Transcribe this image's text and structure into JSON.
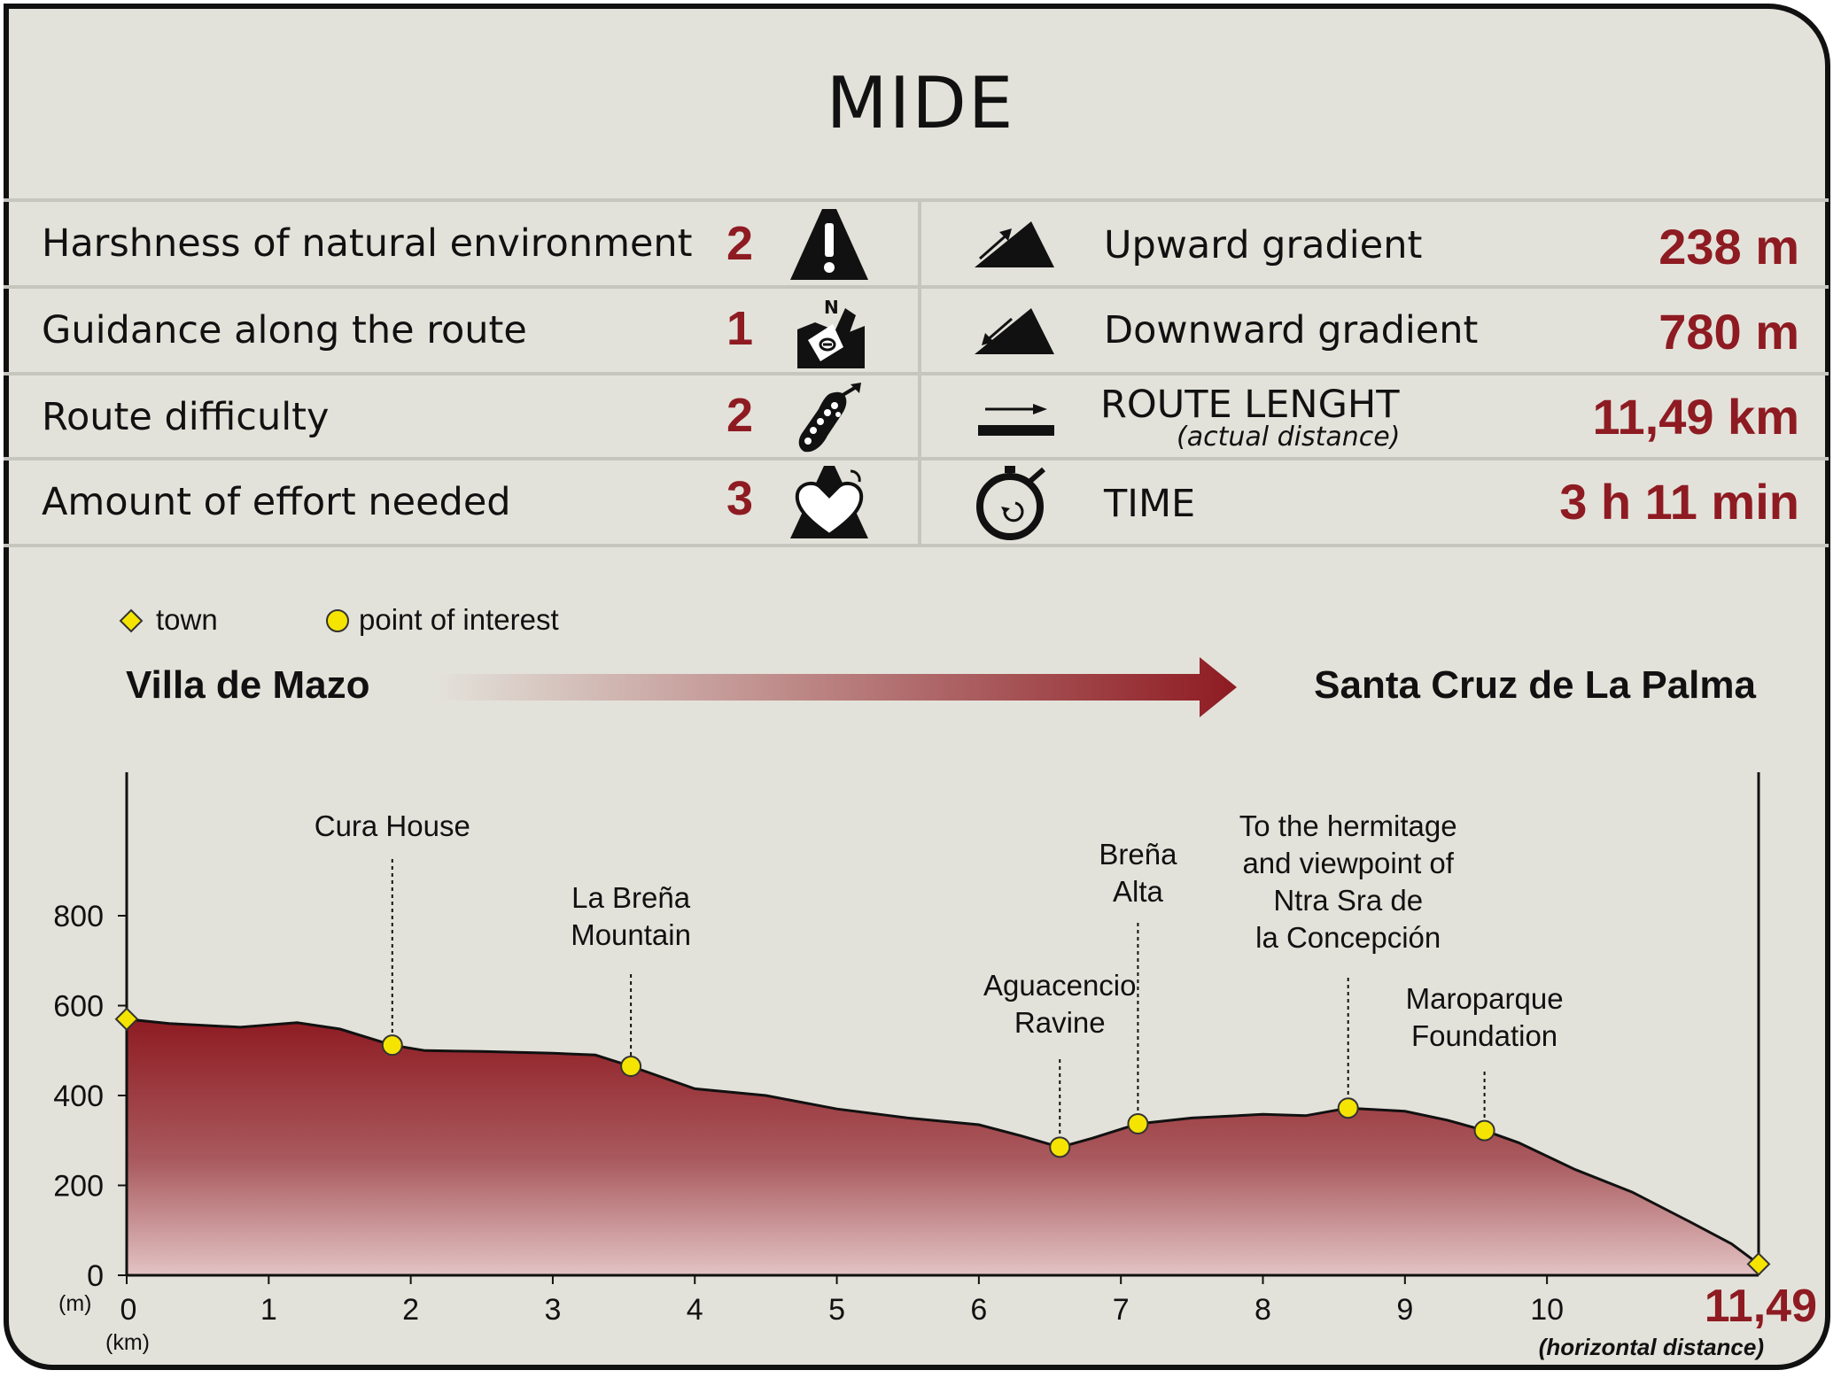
{
  "title": "MIDE",
  "mide_rows": [
    {
      "label": "Harshness of natural environment",
      "score": "2",
      "icon": "warning-mountain-icon"
    },
    {
      "label": "Guidance along the route",
      "score": "1",
      "icon": "map-compass-icon"
    },
    {
      "label": "Route difficulty",
      "score": "2",
      "icon": "boot-print-icon"
    },
    {
      "label": "Amount of effort needed",
      "score": "3",
      "icon": "heart-mountain-icon"
    }
  ],
  "route_stats": [
    {
      "label": "Upward gradient",
      "value": "238 m",
      "icon": "ascent-icon"
    },
    {
      "label": "Downward gradient",
      "value": "780 m",
      "icon": "descent-icon"
    },
    {
      "label": "ROUTE LENGHT",
      "sublabel": "(actual distance)",
      "value": "11,49 km",
      "icon": "distance-arrow-icon"
    },
    {
      "label": "TIME",
      "value": "3 h 11 min",
      "icon": "stopwatch-icon"
    }
  ],
  "legend": {
    "town": "town",
    "poi": "point of interest"
  },
  "route": {
    "start": "Villa de Mazo",
    "end": "Santa Cruz de La Palma"
  },
  "colors": {
    "accent": "#8e1b22",
    "marker": "#f5e400",
    "background": "#e3e2da"
  },
  "chart_data": {
    "type": "area",
    "xlabel_unit": "(km)",
    "ylabel_unit": "(m)",
    "x_end_label": "11,49",
    "x_end_caption": "(horizontal distance)",
    "xlim": [
      0,
      11.49
    ],
    "ylim": [
      0,
      1000
    ],
    "x_ticks": [
      0,
      1,
      2,
      3,
      4,
      5,
      6,
      7,
      8,
      9,
      10
    ],
    "y_ticks": [
      0,
      200,
      400,
      600,
      800
    ],
    "profile": [
      [
        0,
        570
      ],
      [
        0.3,
        560
      ],
      [
        0.8,
        552
      ],
      [
        1.2,
        562
      ],
      [
        1.5,
        548
      ],
      [
        1.87,
        512
      ],
      [
        2.1,
        500
      ],
      [
        2.5,
        498
      ],
      [
        3.0,
        494
      ],
      [
        3.3,
        490
      ],
      [
        3.55,
        465
      ],
      [
        4.0,
        415
      ],
      [
        4.5,
        400
      ],
      [
        5.0,
        370
      ],
      [
        5.5,
        350
      ],
      [
        6.0,
        335
      ],
      [
        6.3,
        310
      ],
      [
        6.57,
        285
      ],
      [
        6.8,
        305
      ],
      [
        7.12,
        337
      ],
      [
        7.5,
        350
      ],
      [
        8.0,
        358
      ],
      [
        8.3,
        355
      ],
      [
        8.6,
        372
      ],
      [
        9.0,
        365
      ],
      [
        9.3,
        345
      ],
      [
        9.56,
        322
      ],
      [
        9.8,
        295
      ],
      [
        10.2,
        235
      ],
      [
        10.6,
        185
      ],
      [
        11.0,
        120
      ],
      [
        11.3,
        70
      ],
      [
        11.49,
        25
      ]
    ],
    "points": [
      {
        "x": 0,
        "y": 570,
        "kind": "town",
        "label": ""
      },
      {
        "x": 1.87,
        "y": 512,
        "kind": "poi",
        "label": "Cura House"
      },
      {
        "x": 3.55,
        "y": 465,
        "kind": "poi",
        "label": "La Breña Mountain"
      },
      {
        "x": 6.57,
        "y": 285,
        "kind": "poi",
        "label": "Aguacencio Ravine"
      },
      {
        "x": 7.12,
        "y": 337,
        "kind": "poi",
        "label": "Breña Alta"
      },
      {
        "x": 8.6,
        "y": 372,
        "kind": "poi",
        "label": "To the hermitage and viewpoint of Ntra Sra de la Concepción"
      },
      {
        "x": 9.56,
        "y": 322,
        "kind": "poi",
        "label": "Maroparque Foundation"
      },
      {
        "x": 11.49,
        "y": 25,
        "kind": "town",
        "label": ""
      }
    ],
    "annotations": [
      {
        "lines": [
          "Cura House"
        ]
      },
      {
        "lines": [
          "La Breña",
          "Mountain"
        ]
      },
      {
        "lines": [
          "Aguacencio",
          "Ravine"
        ]
      },
      {
        "lines": [
          "Breña",
          "Alta"
        ]
      },
      {
        "lines": [
          "To the hermitage",
          "and viewpoint of",
          "Ntra Sra de",
          "la Concepción"
        ]
      },
      {
        "lines": [
          "Maroparque",
          "Foundation"
        ]
      }
    ]
  }
}
